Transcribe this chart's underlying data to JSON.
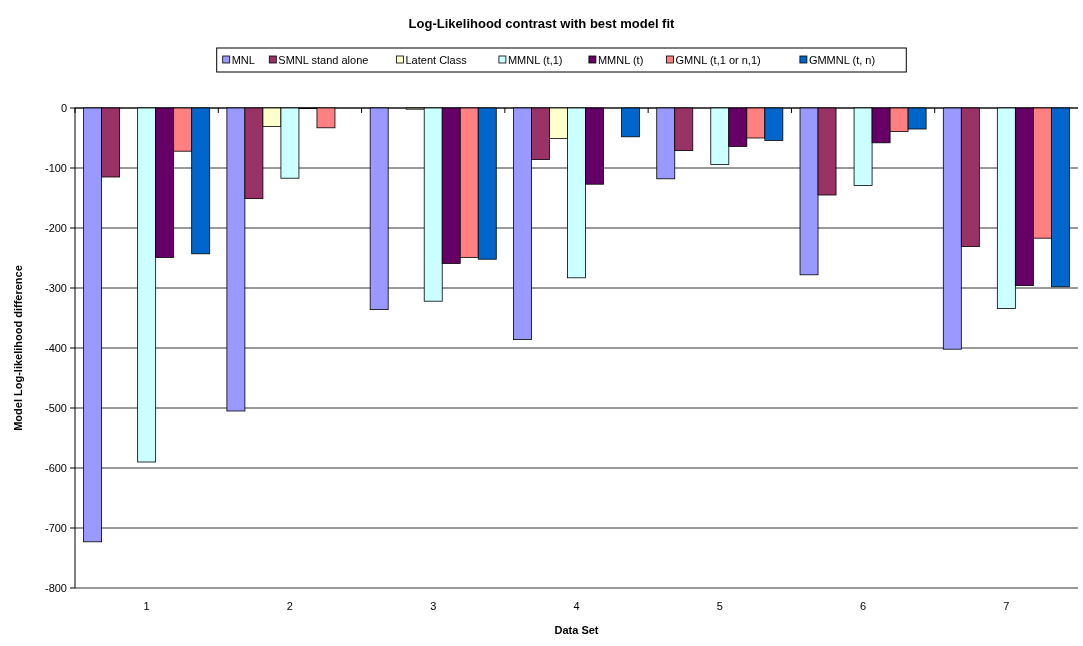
{
  "chart_data": {
    "type": "bar",
    "title": "Log-Likelihood contrast with best model fit",
    "xlabel": "Data Set",
    "ylabel": "Model Log-likelihood difference",
    "categories": [
      "1",
      "2",
      "3",
      "4",
      "5",
      "6",
      "7"
    ],
    "series": [
      {
        "name": "MNL",
        "color": "#9999ff",
        "values": [
          -723,
          -505,
          -336,
          -386,
          -118,
          -278,
          -402
        ]
      },
      {
        "name": "SMNL stand alone",
        "color": "#993366",
        "values": [
          -115,
          -151,
          0,
          -86,
          -71,
          -145,
          -231
        ]
      },
      {
        "name": "Latent Class",
        "color": "#ffffcc",
        "values": [
          0,
          -31,
          -2,
          -51,
          0,
          0,
          0
        ]
      },
      {
        "name": "MMNL (t,1)",
        "color": "#ccffff",
        "values": [
          -590,
          -117,
          -322,
          -283,
          -94,
          -129,
          -334
        ]
      },
      {
        "name": "MMNL (t)",
        "color": "#660066",
        "values": [
          -249,
          -1,
          -259,
          -127,
          -64,
          -58,
          -296
        ]
      },
      {
        "name": "GMNL (t,1 or n,1)",
        "color": "#ff8080",
        "values": [
          -72,
          -33,
          -249,
          0,
          -50,
          -39,
          -217
        ]
      },
      {
        "name": "GMMNL (t, n)",
        "color": "#0066cc",
        "values": [
          -243,
          0,
          -252,
          -48,
          -54,
          -35,
          -298
        ]
      }
    ],
    "ylim": [
      -800,
      0
    ],
    "yticks": [
      -800,
      -700,
      -600,
      -500,
      -400,
      -300,
      -200,
      -100,
      0
    ],
    "grid": "y",
    "legend": "top"
  }
}
